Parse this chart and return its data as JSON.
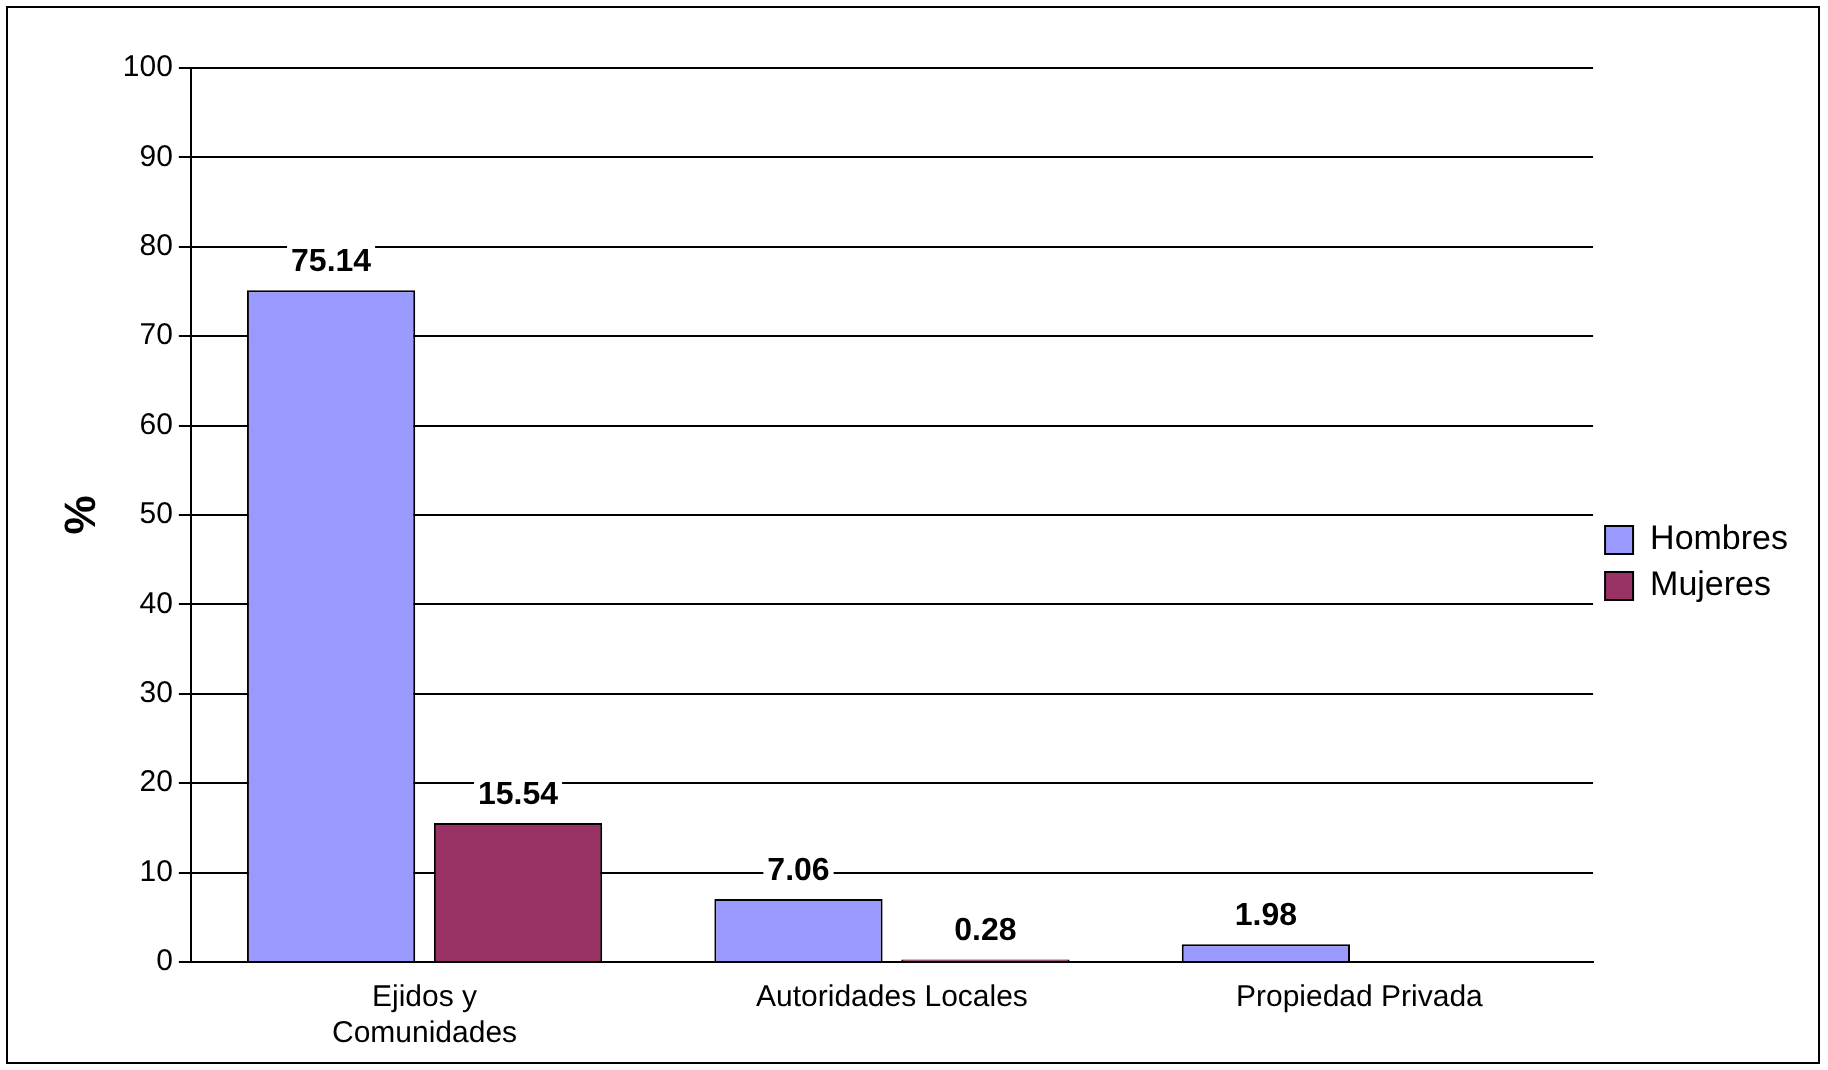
{
  "chart_data": {
    "type": "bar",
    "ylabel": "%",
    "categories": [
      "Ejidos y Comunidades",
      "Autoridades Locales",
      "Propiedad Privada"
    ],
    "series": [
      {
        "name": "Hombres",
        "color": "#9999ff",
        "values": [
          75.14,
          7.06,
          1.98
        ]
      },
      {
        "name": "Mujeres",
        "color": "#993366",
        "values": [
          15.54,
          0.28,
          null
        ]
      }
    ],
    "ylim": [
      0,
      100
    ],
    "yticks": [
      0,
      10,
      20,
      30,
      40,
      50,
      60,
      70,
      80,
      90,
      100
    ],
    "grid": "y",
    "legend": "right",
    "data_labels": true
  }
}
